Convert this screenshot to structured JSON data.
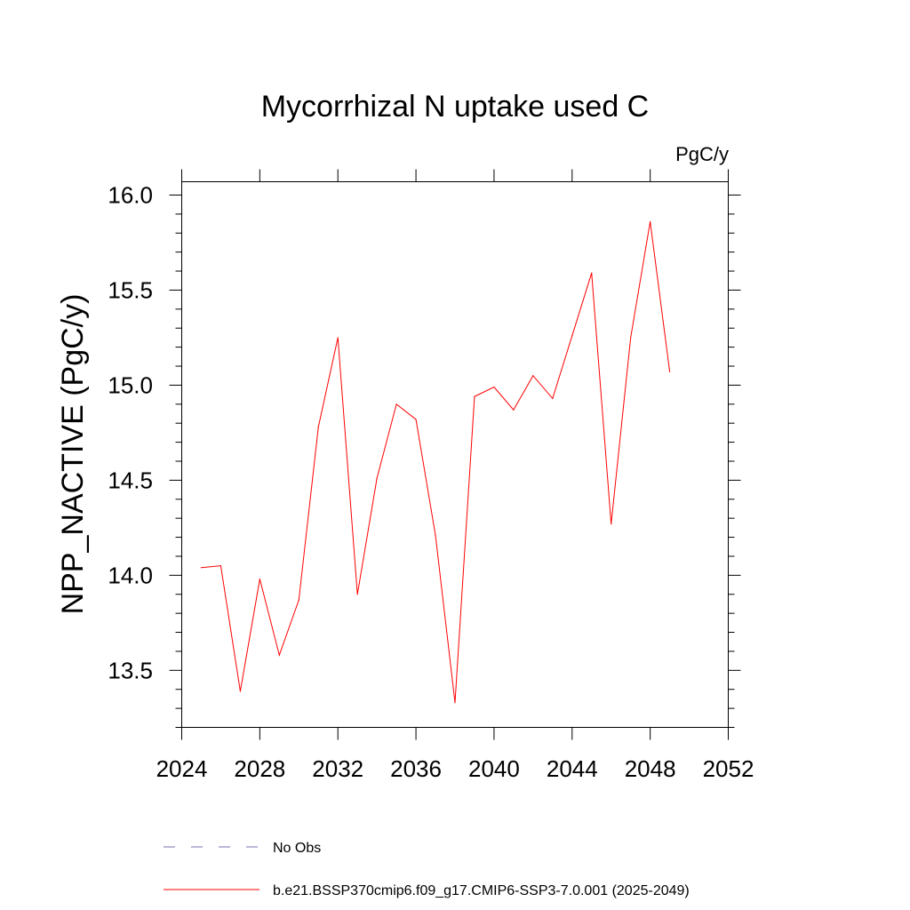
{
  "chart_data": {
    "type": "line",
    "title": "Mycorrhizal N uptake used C",
    "units_label": "PgC/y",
    "xlabel": "",
    "ylabel": "NPP_NACTIVE  (PgC/y)",
    "xlim": [
      2024,
      2052
    ],
    "ylim": [
      13.2,
      16.07
    ],
    "x_ticks": [
      2024,
      2028,
      2032,
      2036,
      2040,
      2044,
      2048,
      2052
    ],
    "x_tick_labels": [
      "2024",
      "2028",
      "2032",
      "2036",
      "2040",
      "2044",
      "2048",
      "2052"
    ],
    "y_ticks": [
      13.5,
      14.0,
      14.5,
      15.0,
      15.5,
      16.0
    ],
    "y_tick_labels": [
      "13.5",
      "14.0",
      "14.5",
      "15.0",
      "15.5",
      "16.0"
    ],
    "grid": false,
    "legend_position": "bottom-left",
    "series": [
      {
        "name": "No Obs",
        "color": "#7b6fb0",
        "dash": "dashed",
        "x": [],
        "values": []
      },
      {
        "name": "b.e21.BSSP370cmip6.f09_g17.CMIP6-SSP3-7.0.001 (2025-2049)",
        "color": "#ff0000",
        "dash": "solid",
        "x": [
          2025,
          2026,
          2027,
          2028,
          2029,
          2030,
          2031,
          2032,
          2033,
          2034,
          2035,
          2036,
          2037,
          2038,
          2039,
          2040,
          2041,
          2042,
          2043,
          2044,
          2045,
          2046,
          2047,
          2048,
          2049
        ],
        "values": [
          14.04,
          14.05,
          13.39,
          13.98,
          13.58,
          13.87,
          14.78,
          15.25,
          13.9,
          14.51,
          14.9,
          14.82,
          14.21,
          13.33,
          14.94,
          14.99,
          14.87,
          15.05,
          14.93,
          15.26,
          15.59,
          14.27,
          15.25,
          15.86,
          15.07
        ]
      }
    ]
  }
}
